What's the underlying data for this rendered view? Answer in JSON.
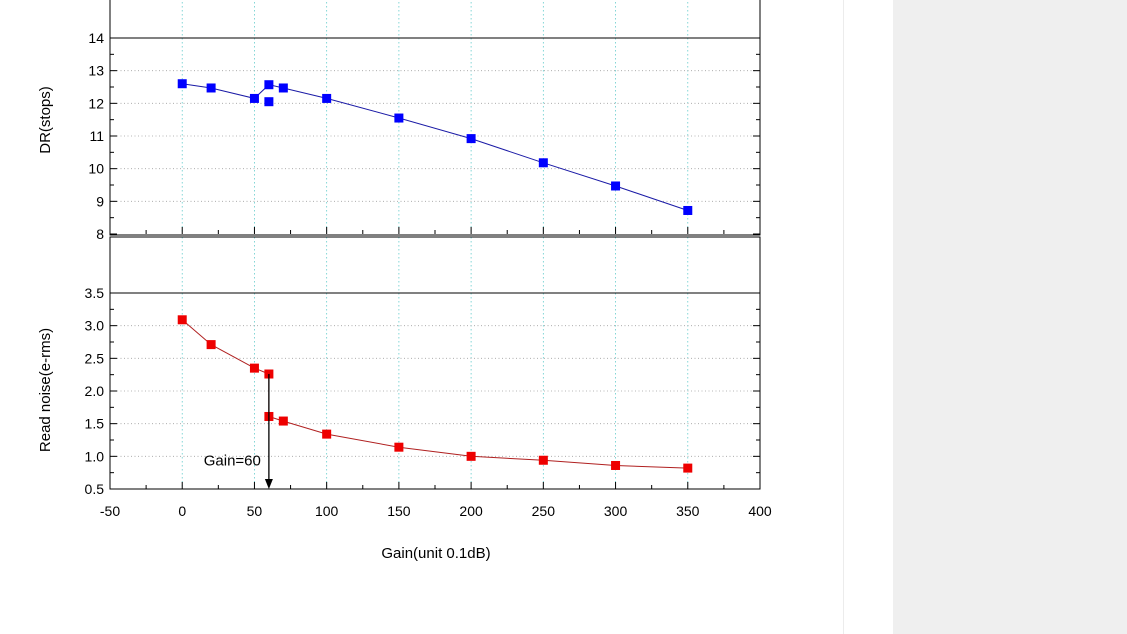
{
  "chart_data": [
    {
      "type": "scatter",
      "ylabel": "DR(stops)",
      "xlim": [
        -50,
        400
      ],
      "ylim": [
        8,
        14
      ],
      "yticks": [
        "8",
        "9",
        "10",
        "11",
        "12",
        "13",
        "14"
      ],
      "grid": true,
      "line": {
        "color": "#1a1aa6"
      },
      "series": [
        {
          "color": "#0000ff",
          "points": [
            [
              0,
              12.6
            ],
            [
              20,
              12.47
            ],
            [
              50,
              12.15
            ],
            [
              60,
              12.05
            ],
            [
              60,
              12.57
            ],
            [
              70,
              12.47
            ],
            [
              100,
              12.15
            ],
            [
              150,
              11.55
            ],
            [
              200,
              10.92
            ],
            [
              250,
              10.18
            ],
            [
              300,
              9.47
            ],
            [
              350,
              8.72
            ]
          ],
          "line_order": [
            0,
            1,
            2,
            4,
            5,
            6,
            7,
            8,
            9,
            10,
            11
          ]
        }
      ]
    },
    {
      "type": "scatter",
      "ylabel": "Read noise(e-rms)",
      "xlabel": "Gain(unit 0.1dB)",
      "xlim": [
        -50,
        400
      ],
      "ylim": [
        0.5,
        3.5
      ],
      "xticks": [
        "-50",
        "0",
        "50",
        "100",
        "150",
        "200",
        "250",
        "300",
        "350",
        "400"
      ],
      "yticks": [
        "0.5",
        "1.0",
        "1.5",
        "2.0",
        "2.5",
        "3.0",
        "3.5"
      ],
      "grid": true,
      "line": {
        "color": "#b02020"
      },
      "series": [
        {
          "color": "#ee0000",
          "points": [
            [
              0,
              3.09
            ],
            [
              20,
              2.71
            ],
            [
              50,
              2.35
            ],
            [
              60,
              2.26
            ],
            [
              60,
              1.61
            ],
            [
              70,
              1.54
            ],
            [
              100,
              1.34
            ],
            [
              150,
              1.14
            ],
            [
              200,
              1.0
            ],
            [
              250,
              0.94
            ],
            [
              300,
              0.86
            ],
            [
              350,
              0.82
            ]
          ],
          "line_order": [
            0,
            1,
            2,
            3,
            4,
            5,
            6,
            7,
            8,
            9,
            10,
            11
          ]
        }
      ],
      "annotation": {
        "text": "Gain=60",
        "arrow_x": 60,
        "arrow_from_y": 2.26,
        "arrow_to_y": 0.5
      }
    }
  ]
}
